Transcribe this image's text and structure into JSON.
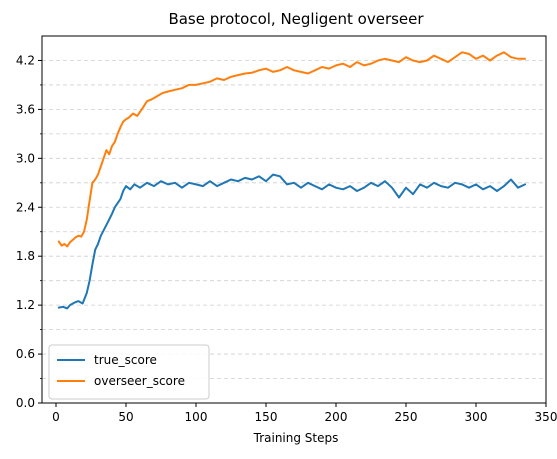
{
  "chart_data": {
    "type": "line",
    "title": "Base protocol, Negligent overseer",
    "xlabel": "Training Steps",
    "ylabel": "",
    "xlim": [
      -10,
      350
    ],
    "ylim": [
      0.0,
      4.5
    ],
    "x_ticks": [
      0,
      50,
      100,
      150,
      200,
      250,
      300,
      350
    ],
    "y_ticks": [
      0.0,
      0.6,
      1.2,
      1.8,
      2.4,
      3.0,
      3.6,
      4.2
    ],
    "y_minor_ticks": [
      0.3,
      0.9,
      1.5,
      2.1,
      2.7,
      3.3,
      3.9
    ],
    "y_tick_labels": [
      "0.0",
      "0.6",
      "1.2",
      "1.8",
      "2.4",
      "3.0",
      "3.6",
      "4.2"
    ],
    "x_tick_labels": [
      "0",
      "50",
      "100",
      "150",
      "200",
      "250",
      "300",
      "350"
    ],
    "grid": "horizontal-dashed",
    "legend_position": "bottom-left",
    "series": [
      {
        "name": "true_score",
        "color": "#1f77b4",
        "x": [
          2,
          5,
          8,
          10,
          13,
          16,
          19,
          22,
          24,
          26,
          28,
          30,
          32,
          35,
          38,
          40,
          42,
          44,
          46,
          48,
          50,
          53,
          56,
          60,
          65,
          70,
          75,
          80,
          85,
          90,
          95,
          100,
          105,
          110,
          115,
          120,
          125,
          130,
          135,
          140,
          145,
          150,
          155,
          160,
          165,
          170,
          175,
          180,
          185,
          190,
          195,
          200,
          205,
          210,
          215,
          220,
          225,
          230,
          235,
          240,
          245,
          250,
          255,
          260,
          265,
          270,
          275,
          280,
          285,
          290,
          295,
          300,
          305,
          310,
          315,
          320,
          325,
          330,
          335
        ],
        "y": [
          1.17,
          1.18,
          1.16,
          1.2,
          1.23,
          1.25,
          1.22,
          1.35,
          1.5,
          1.7,
          1.88,
          1.95,
          2.05,
          2.15,
          2.25,
          2.32,
          2.4,
          2.45,
          2.5,
          2.6,
          2.66,
          2.62,
          2.68,
          2.64,
          2.7,
          2.66,
          2.72,
          2.68,
          2.7,
          2.64,
          2.7,
          2.68,
          2.66,
          2.72,
          2.66,
          2.7,
          2.74,
          2.72,
          2.76,
          2.74,
          2.78,
          2.72,
          2.8,
          2.78,
          2.68,
          2.7,
          2.64,
          2.7,
          2.66,
          2.62,
          2.68,
          2.64,
          2.62,
          2.66,
          2.6,
          2.64,
          2.7,
          2.66,
          2.72,
          2.64,
          2.52,
          2.64,
          2.56,
          2.68,
          2.64,
          2.7,
          2.66,
          2.64,
          2.7,
          2.68,
          2.64,
          2.68,
          2.62,
          2.66,
          2.6,
          2.66,
          2.74,
          2.64,
          2.68
        ]
      },
      {
        "name": "overseer_score",
        "color": "#ff7f0e",
        "x": [
          2,
          4,
          6,
          8,
          10,
          12,
          14,
          16,
          18,
          20,
          22,
          24,
          26,
          28,
          30,
          32,
          34,
          36,
          38,
          40,
          42,
          44,
          46,
          48,
          50,
          52,
          55,
          58,
          62,
          65,
          68,
          72,
          76,
          80,
          85,
          90,
          95,
          100,
          105,
          110,
          115,
          120,
          125,
          130,
          135,
          140,
          145,
          150,
          155,
          160,
          165,
          170,
          175,
          180,
          185,
          190,
          195,
          200,
          205,
          210,
          215,
          220,
          225,
          230,
          235,
          240,
          245,
          250,
          255,
          260,
          265,
          270,
          275,
          280,
          285,
          290,
          295,
          300,
          305,
          310,
          315,
          320,
          325,
          330,
          335
        ],
        "y": [
          1.98,
          1.93,
          1.95,
          1.92,
          1.97,
          2.0,
          2.03,
          2.05,
          2.04,
          2.1,
          2.25,
          2.48,
          2.7,
          2.74,
          2.8,
          2.9,
          3.0,
          3.1,
          3.05,
          3.15,
          3.2,
          3.3,
          3.38,
          3.45,
          3.48,
          3.5,
          3.55,
          3.52,
          3.62,
          3.7,
          3.72,
          3.76,
          3.8,
          3.82,
          3.84,
          3.86,
          3.9,
          3.9,
          3.92,
          3.94,
          3.98,
          3.96,
          4.0,
          4.02,
          4.04,
          4.05,
          4.08,
          4.1,
          4.06,
          4.08,
          4.12,
          4.08,
          4.06,
          4.04,
          4.08,
          4.12,
          4.1,
          4.14,
          4.16,
          4.12,
          4.18,
          4.14,
          4.16,
          4.2,
          4.22,
          4.2,
          4.18,
          4.24,
          4.2,
          4.18,
          4.2,
          4.26,
          4.22,
          4.18,
          4.24,
          4.3,
          4.28,
          4.22,
          4.26,
          4.2,
          4.26,
          4.3,
          4.24,
          4.22,
          4.22
        ]
      }
    ]
  }
}
